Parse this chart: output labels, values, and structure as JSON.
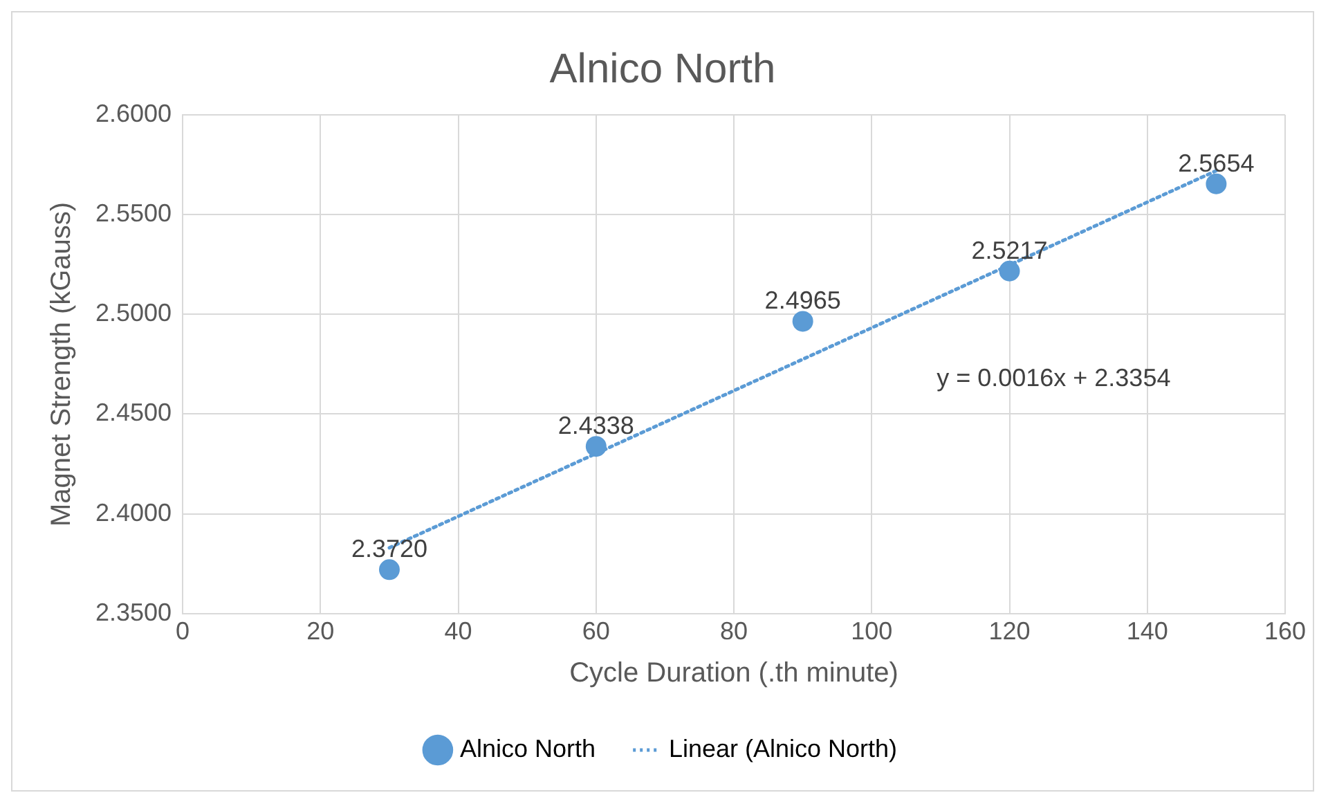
{
  "chart_data": {
    "type": "scatter",
    "title": "Alnico North",
    "xlabel": "Cycle Duration (.th minute)",
    "ylabel": "Magnet Strength (kGauss)",
    "xlim": [
      0,
      160
    ],
    "xticks": [
      0,
      20,
      40,
      60,
      80,
      100,
      120,
      140,
      160
    ],
    "ylim": [
      2.35,
      2.6
    ],
    "yticks": [
      {
        "value": 2.35,
        "label": "2.3500"
      },
      {
        "value": 2.4,
        "label": "2.4000"
      },
      {
        "value": 2.45,
        "label": "2.4500"
      },
      {
        "value": 2.5,
        "label": "2.5000"
      },
      {
        "value": 2.55,
        "label": "2.5500"
      },
      {
        "value": 2.6,
        "label": "2.6000"
      }
    ],
    "grid": true,
    "legend": "bottom",
    "marker": "circle",
    "series": [
      {
        "name": "Alnico North",
        "color": "#5b9bd5",
        "x": [
          30,
          60,
          90,
          120,
          150
        ],
        "values": [
          2.372,
          2.4338,
          2.4965,
          2.5217,
          2.5654
        ],
        "value_labels": [
          "2.3720",
          "2.4338",
          "2.4965",
          "2.5217",
          "2.5654"
        ]
      },
      {
        "name": "Linear (Alnico North)",
        "type": "line",
        "color": "#5b9bd5",
        "line_style": "dotted",
        "marker": "none",
        "x": [
          30,
          150
        ],
        "values": [
          2.383,
          2.572
        ]
      }
    ],
    "annotations": [
      "y = 0.0016x + 2.3354"
    ]
  }
}
